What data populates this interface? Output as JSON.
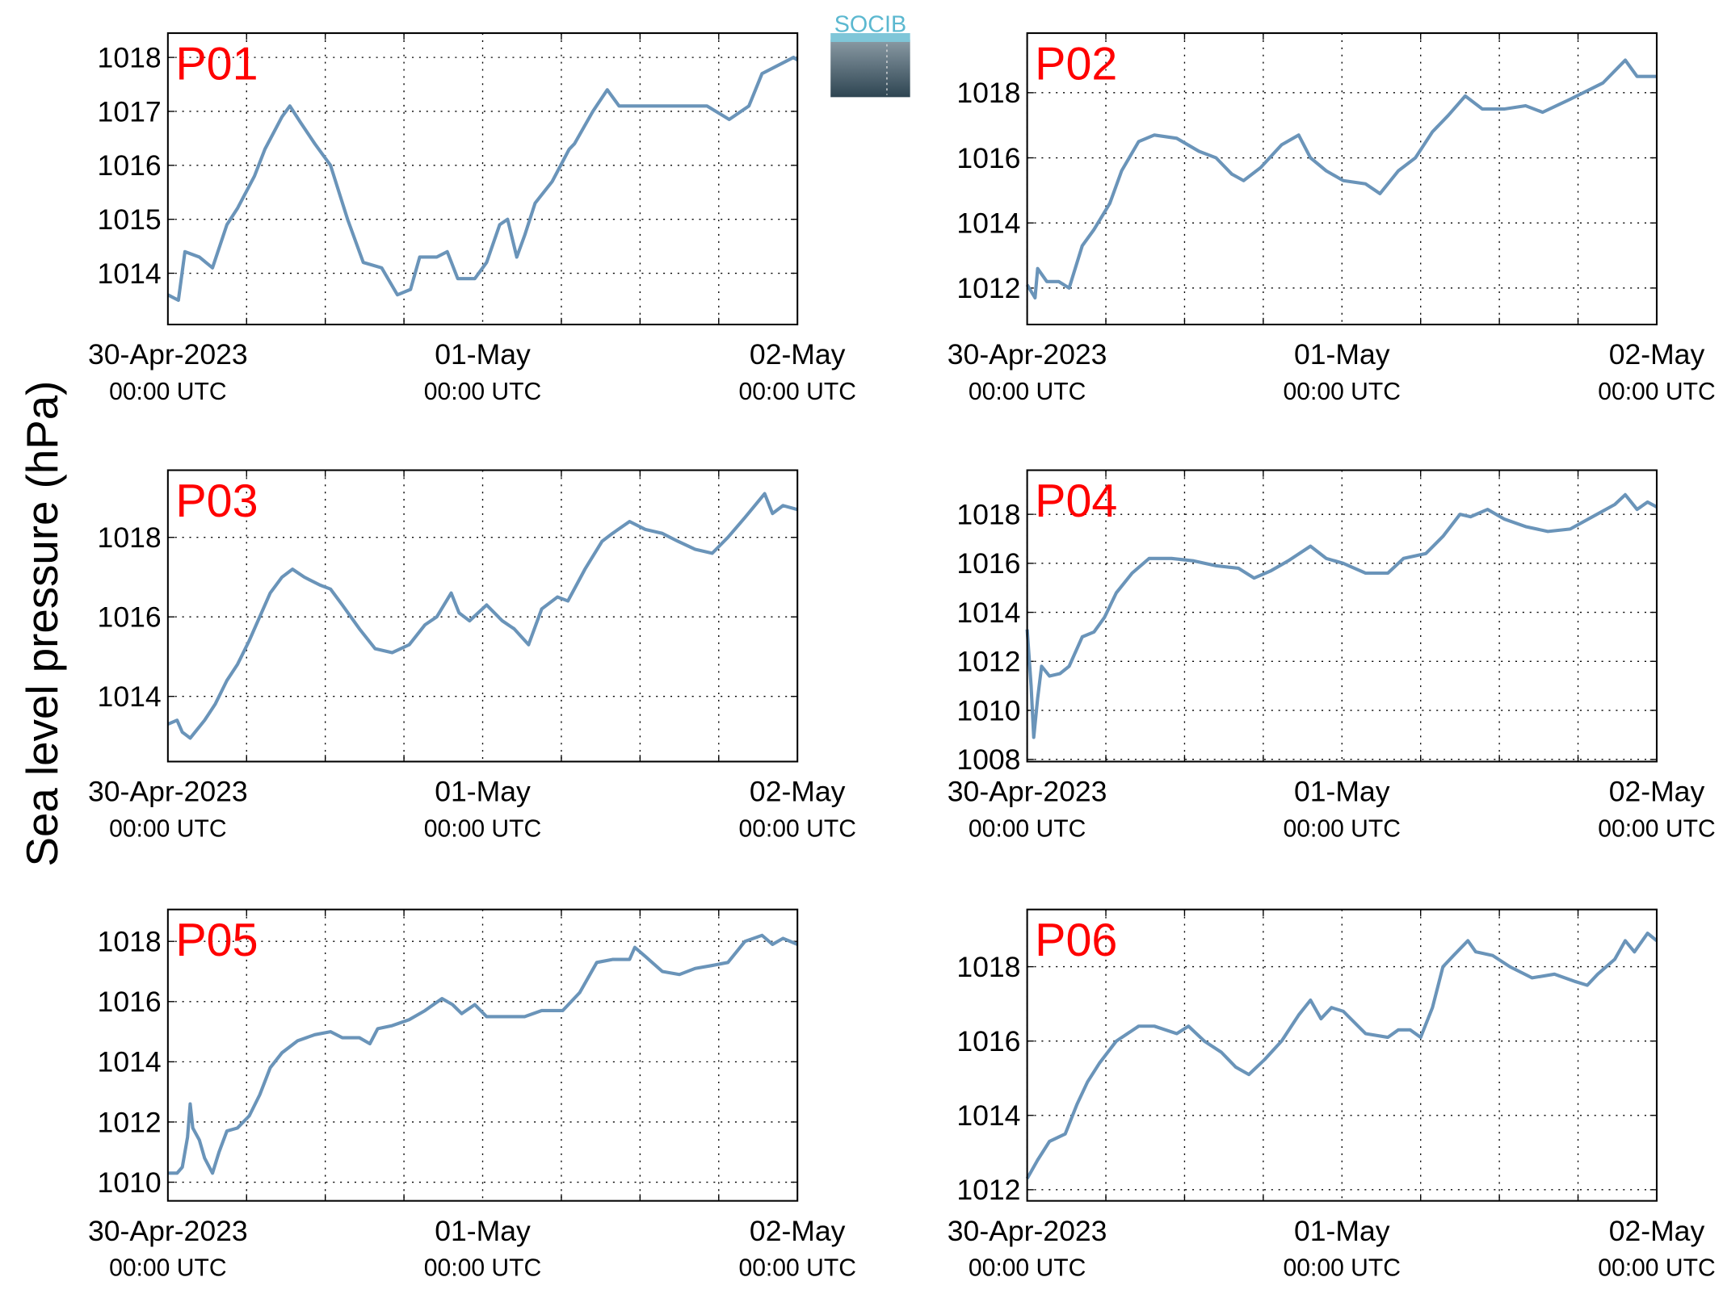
{
  "ylabel": "Sea level pressure (hPa)",
  "logo": "SOCIB",
  "chart_data": [
    {
      "type": "line",
      "title": "P01",
      "title_color": "#ff0000",
      "color": "#6a94b9",
      "grid": true,
      "xlim": [
        0,
        48
      ],
      "ylim": [
        1013.05,
        1018.45
      ],
      "yticks": [
        1014,
        1015,
        1016,
        1017,
        1018
      ],
      "xticks": [
        {
          "value": 0,
          "label": "30-Apr-2023",
          "sublabel": "00:00 UTC"
        },
        {
          "value": 24,
          "label": "01-May",
          "sublabel": "00:00 UTC"
        },
        {
          "value": 48,
          "label": "02-May",
          "sublabel": "00:00 UTC"
        }
      ],
      "xgrid": [
        6,
        12,
        18,
        30,
        36,
        42
      ],
      "x": [
        0,
        0.8,
        1.3,
        2.4,
        3.4,
        4.5,
        5.3,
        6.6,
        7.4,
        8.7,
        9.3,
        10.1,
        11.2,
        12.4,
        13.7,
        14.9,
        16.3,
        17.5,
        18.5,
        19.2,
        20.5,
        21.3,
        22.1,
        23.4,
        24.3,
        25.3,
        25.9,
        26.6,
        27.2,
        28.0,
        29.3,
        30.6,
        31.0,
        32.4,
        33.5,
        34.4,
        37.7,
        41.1,
        42.8,
        44.3,
        45.3,
        47.7,
        48
      ],
      "values": [
        1013.6,
        1013.5,
        1014.4,
        1014.3,
        1014.1,
        1014.9,
        1015.2,
        1015.8,
        1016.3,
        1016.9,
        1017.1,
        1016.8,
        1016.4,
        1016.0,
        1015.0,
        1014.2,
        1014.1,
        1013.6,
        1013.7,
        1014.3,
        1014.3,
        1014.4,
        1013.9,
        1013.9,
        1014.2,
        1014.9,
        1015.0,
        1014.3,
        1014.7,
        1015.3,
        1015.7,
        1016.3,
        1016.4,
        1017.0,
        1017.4,
        1017.1,
        1017.1,
        1017.1,
        1016.85,
        1017.1,
        1017.7,
        1018.0,
        1017.95
      ]
    },
    {
      "type": "line",
      "title": "P02",
      "title_color": "#ff0000",
      "color": "#6a94b9",
      "grid": true,
      "xlim": [
        0,
        48
      ],
      "ylim": [
        1010.88,
        1019.83
      ],
      "yticks": [
        1012,
        1014,
        1016,
        1018
      ],
      "xticks": [
        {
          "value": 0,
          "label": "30-Apr-2023",
          "sublabel": "00:00 UTC"
        },
        {
          "value": 24,
          "label": "01-May",
          "sublabel": "00:00 UTC"
        },
        {
          "value": 48,
          "label": "02-May",
          "sublabel": "00:00 UTC"
        }
      ],
      "xgrid": [
        6,
        12,
        18,
        30,
        36,
        42
      ],
      "x": [
        0,
        0.6,
        0.8,
        1.5,
        2.4,
        3.2,
        4.2,
        5.1,
        6.3,
        7.2,
        8.5,
        9.7,
        11.4,
        13.1,
        14.4,
        15.6,
        16.5,
        17.8,
        19.4,
        20.7,
        21.6,
        22.8,
        24.1,
        25.8,
        26.9,
        28.3,
        29.6,
        30.9,
        32.1,
        33.4,
        34.7,
        36.4,
        38.0,
        39.3,
        41.4,
        43.9,
        45.6,
        46.5,
        48.0
      ],
      "values": [
        1012.1,
        1011.7,
        1012.6,
        1012.2,
        1012.2,
        1012.0,
        1013.3,
        1013.8,
        1014.6,
        1015.6,
        1016.5,
        1016.7,
        1016.6,
        1016.2,
        1016.0,
        1015.5,
        1015.3,
        1015.7,
        1016.4,
        1016.7,
        1016.0,
        1015.6,
        1015.3,
        1015.2,
        1014.9,
        1015.6,
        1016.0,
        1016.8,
        1017.3,
        1017.9,
        1017.5,
        1017.5,
        1017.6,
        1017.4,
        1017.8,
        1018.3,
        1019.0,
        1018.5,
        1018.5
      ]
    },
    {
      "type": "line",
      "title": "P03",
      "title_color": "#ff0000",
      "color": "#6a94b9",
      "grid": true,
      "xlim": [
        0,
        48
      ],
      "ylim": [
        1012.36,
        1019.69
      ],
      "yticks": [
        1014,
        1016,
        1018
      ],
      "xticks": [
        {
          "value": 0,
          "label": "30-Apr-2023",
          "sublabel": "00:00 UTC"
        },
        {
          "value": 24,
          "label": "01-May",
          "sublabel": "00:00 UTC"
        },
        {
          "value": 48,
          "label": "02-May",
          "sublabel": "00:00 UTC"
        }
      ],
      "xgrid": [
        6,
        12,
        18,
        30,
        36,
        42
      ],
      "x": [
        0,
        0.7,
        1.1,
        1.7,
        2.8,
        3.6,
        4.5,
        5.3,
        6.2,
        7.0,
        7.8,
        8.7,
        9.5,
        10.4,
        11.6,
        12.4,
        13.3,
        14.6,
        15.8,
        17.1,
        18.4,
        19.6,
        20.5,
        21.6,
        22.2,
        23.0,
        24.3,
        25.5,
        26.4,
        27.5,
        28.5,
        29.7,
        30.5,
        31.8,
        33.1,
        33.9,
        35.2,
        36.4,
        37.7,
        38.9,
        40.2,
        41.5,
        42.7,
        44.0,
        45.5,
        46.1,
        46.9,
        48.0
      ],
      "values": [
        1013.3,
        1013.4,
        1013.1,
        1012.95,
        1013.4,
        1013.8,
        1014.4,
        1014.8,
        1015.4,
        1016.0,
        1016.6,
        1017.0,
        1017.2,
        1017.0,
        1016.8,
        1016.7,
        1016.3,
        1015.7,
        1015.2,
        1015.1,
        1015.3,
        1015.8,
        1016.0,
        1016.6,
        1016.1,
        1015.9,
        1016.3,
        1015.9,
        1015.7,
        1015.3,
        1016.2,
        1016.5,
        1016.4,
        1017.2,
        1017.9,
        1018.1,
        1018.4,
        1018.2,
        1018.1,
        1017.9,
        1017.7,
        1017.6,
        1018.0,
        1018.5,
        1019.1,
        1018.6,
        1018.8,
        1018.7
      ]
    },
    {
      "type": "line",
      "title": "P04",
      "title_color": "#ff0000",
      "color": "#6a94b9",
      "grid": true,
      "xlim": [
        0,
        48
      ],
      "ylim": [
        1007.91,
        1019.8
      ],
      "yticks": [
        1008,
        1010,
        1012,
        1014,
        1016,
        1018
      ],
      "xticks": [
        {
          "value": 0,
          "label": "30-Apr-2023",
          "sublabel": "00:00 UTC"
        },
        {
          "value": 24,
          "label": "01-May",
          "sublabel": "00:00 UTC"
        },
        {
          "value": 48,
          "label": "02-May",
          "sublabel": "00:00 UTC"
        }
      ],
      "xgrid": [
        6,
        12,
        18,
        30,
        36,
        42
      ],
      "x": [
        0,
        0.3,
        0.5,
        0.8,
        1.1,
        1.7,
        2.5,
        3.2,
        4.2,
        5.1,
        5.9,
        6.8,
        8.0,
        9.3,
        11.0,
        12.7,
        14.4,
        16.1,
        17.3,
        18.6,
        19.9,
        21.6,
        22.8,
        24.1,
        25.8,
        27.5,
        28.7,
        30.4,
        31.7,
        33.0,
        33.8,
        35.1,
        36.4,
        38.0,
        39.7,
        41.4,
        43.1,
        44.8,
        45.6,
        46.5,
        47.3,
        48.0
      ],
      "values": [
        1013.3,
        1011.0,
        1008.9,
        1010.5,
        1011.8,
        1011.4,
        1011.5,
        1011.8,
        1013.0,
        1013.2,
        1013.8,
        1014.8,
        1015.6,
        1016.2,
        1016.2,
        1016.1,
        1015.9,
        1015.8,
        1015.4,
        1015.7,
        1016.1,
        1016.7,
        1016.2,
        1016.0,
        1015.6,
        1015.6,
        1016.2,
        1016.4,
        1017.1,
        1018.0,
        1017.9,
        1018.2,
        1017.8,
        1017.5,
        1017.3,
        1017.4,
        1017.9,
        1018.4,
        1018.8,
        1018.2,
        1018.5,
        1018.3
      ]
    },
    {
      "type": "line",
      "title": "P05",
      "title_color": "#ff0000",
      "color": "#6a94b9",
      "grid": true,
      "xlim": [
        0,
        48
      ],
      "ylim": [
        1009.38,
        1019.06
      ],
      "yticks": [
        1010,
        1012,
        1014,
        1016,
        1018
      ],
      "xticks": [
        {
          "value": 0,
          "label": "30-Apr-2023",
          "sublabel": "00:00 UTC"
        },
        {
          "value": 24,
          "label": "01-May",
          "sublabel": "00:00 UTC"
        },
        {
          "value": 48,
          "label": "02-May",
          "sublabel": "00:00 UTC"
        }
      ],
      "xgrid": [
        6,
        12,
        18,
        30,
        36,
        42
      ],
      "x": [
        0,
        0.7,
        1.1,
        1.5,
        1.7,
        1.9,
        2.4,
        2.8,
        3.4,
        3.9,
        4.5,
        5.3,
        6.2,
        7.0,
        7.8,
        8.7,
        9.9,
        11.2,
        12.4,
        13.3,
        14.6,
        15.4,
        16.0,
        17.1,
        18.4,
        19.6,
        20.9,
        21.7,
        22.4,
        23.4,
        24.3,
        25.9,
        27.2,
        28.5,
        30.1,
        31.4,
        32.7,
        33.9,
        35.2,
        35.6,
        36.4,
        37.7,
        39.0,
        40.2,
        41.5,
        42.7,
        44.0,
        45.3,
        46.1,
        46.9,
        48.0
      ],
      "values": [
        1010.3,
        1010.3,
        1010.5,
        1011.5,
        1012.6,
        1011.8,
        1011.4,
        1010.8,
        1010.3,
        1011.0,
        1011.7,
        1011.8,
        1012.2,
        1012.9,
        1013.8,
        1014.3,
        1014.7,
        1014.9,
        1015.0,
        1014.8,
        1014.8,
        1014.6,
        1015.1,
        1015.2,
        1015.4,
        1015.7,
        1016.1,
        1015.9,
        1015.6,
        1015.9,
        1015.5,
        1015.5,
        1015.5,
        1015.7,
        1015.7,
        1016.3,
        1017.3,
        1017.4,
        1017.4,
        1017.8,
        1017.5,
        1017.0,
        1016.9,
        1017.1,
        1017.2,
        1017.3,
        1018.0,
        1018.2,
        1017.9,
        1018.1,
        1017.9
      ]
    },
    {
      "type": "line",
      "title": "P06",
      "title_color": "#ff0000",
      "color": "#6a94b9",
      "grid": true,
      "xlim": [
        0,
        48
      ],
      "ylim": [
        1011.7,
        1019.54
      ],
      "yticks": [
        1012,
        1014,
        1016,
        1018
      ],
      "xticks": [
        {
          "value": 0,
          "label": "30-Apr-2023",
          "sublabel": "00:00 UTC"
        },
        {
          "value": 24,
          "label": "01-May",
          "sublabel": "00:00 UTC"
        },
        {
          "value": 48,
          "label": "02-May",
          "sublabel": "00:00 UTC"
        }
      ],
      "xgrid": [
        6,
        12,
        18,
        30,
        36,
        42
      ],
      "x": [
        0,
        0.8,
        1.7,
        2.9,
        3.8,
        4.6,
        5.5,
        6.8,
        8.5,
        9.7,
        11.4,
        12.3,
        13.5,
        14.8,
        15.9,
        16.9,
        18.1,
        19.4,
        20.7,
        21.6,
        22.4,
        23.2,
        24.1,
        25.8,
        27.5,
        28.3,
        29.2,
        30.0,
        30.9,
        31.7,
        32.5,
        33.6,
        34.2,
        35.5,
        36.8,
        38.5,
        40.2,
        41.8,
        42.7,
        43.5,
        44.8,
        45.6,
        46.3,
        47.3,
        48.0
      ],
      "values": [
        1012.3,
        1012.8,
        1013.3,
        1013.5,
        1014.3,
        1014.9,
        1015.4,
        1016.0,
        1016.4,
        1016.4,
        1016.2,
        1016.4,
        1016.0,
        1015.7,
        1015.3,
        1015.1,
        1015.5,
        1016.0,
        1016.7,
        1017.1,
        1016.6,
        1016.9,
        1016.8,
        1016.2,
        1016.1,
        1016.3,
        1016.3,
        1016.1,
        1016.9,
        1018.0,
        1018.3,
        1018.7,
        1018.4,
        1018.3,
        1018.0,
        1017.7,
        1017.8,
        1017.6,
        1017.5,
        1017.8,
        1018.2,
        1018.7,
        1018.4,
        1018.9,
        1018.7
      ]
    }
  ]
}
